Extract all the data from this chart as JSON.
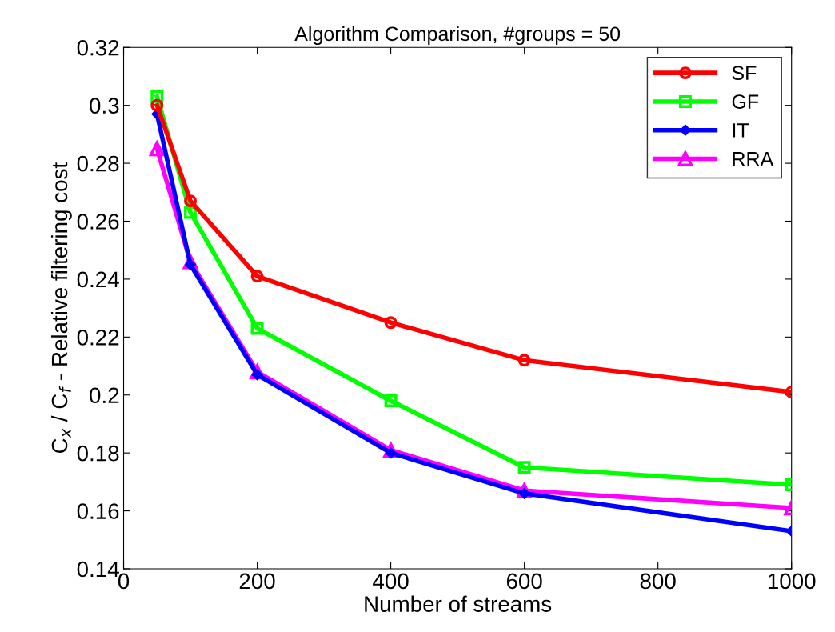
{
  "chart_data": {
    "type": "line",
    "title": "Algorithm Comparison, #groups = 50",
    "xlabel": "Number of streams",
    "ylabel": "C$_{x}$ / C$_{f}$ - Relative filtering cost",
    "x": [
      50,
      100,
      200,
      400,
      600,
      1000
    ],
    "series": [
      {
        "name": "SF",
        "color": "#ff0000",
        "marker": "circle",
        "values": [
          0.3,
          0.267,
          0.241,
          0.225,
          0.212,
          0.201
        ]
      },
      {
        "name": "GF",
        "color": "#00ff00",
        "marker": "square",
        "values": [
          0.303,
          0.263,
          0.223,
          0.198,
          0.175,
          0.169
        ]
      },
      {
        "name": "IT",
        "color": "#0000ff",
        "marker": "diamond",
        "values": [
          0.297,
          0.245,
          0.207,
          0.18,
          0.166,
          0.153
        ]
      },
      {
        "name": "RRA",
        "color": "#ff00ff",
        "marker": "triangle",
        "values": [
          0.285,
          0.246,
          0.208,
          0.181,
          0.167,
          0.161
        ]
      }
    ],
    "xlim": [
      0,
      1000
    ],
    "ylim": [
      0.14,
      0.32
    ],
    "xticks": [
      0,
      200,
      400,
      600,
      800,
      1000
    ],
    "yticks": [
      0.14,
      0.16,
      0.18,
      0.2,
      0.22,
      0.24,
      0.26,
      0.28,
      0.3,
      0.32
    ],
    "grid": false,
    "legend": "top right",
    "line_style": "solid"
  }
}
